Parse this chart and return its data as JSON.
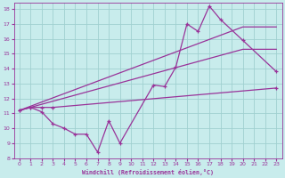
{
  "xlabel": "Windchill (Refroidissement éolien,°C)",
  "bg_color": "#c8ecec",
  "grid_color": "#a0d0d0",
  "line_color": "#993399",
  "spine_color": "#993399",
  "xlim": [
    -0.5,
    23.5
  ],
  "ylim": [
    8,
    18.4
  ],
  "xticks": [
    0,
    1,
    2,
    3,
    4,
    5,
    6,
    7,
    8,
    9,
    10,
    11,
    12,
    13,
    14,
    15,
    16,
    17,
    18,
    19,
    20,
    21,
    22,
    23
  ],
  "yticks": [
    8,
    9,
    10,
    11,
    12,
    13,
    14,
    15,
    16,
    17,
    18
  ],
  "series": [
    {
      "x": [
        0,
        1,
        2,
        3,
        4,
        5,
        6,
        7,
        8,
        9,
        12,
        13,
        14,
        15,
        16,
        17,
        18,
        20,
        23
      ],
      "y": [
        11.2,
        11.4,
        11.1,
        10.3,
        10.0,
        9.6,
        9.6,
        8.4,
        10.5,
        9.0,
        12.9,
        12.8,
        14.1,
        17.0,
        16.5,
        18.2,
        17.3,
        15.9,
        13.8
      ],
      "markers": true
    },
    {
      "x": [
        0,
        1,
        2,
        3,
        23
      ],
      "y": [
        11.2,
        11.4,
        11.4,
        11.4,
        12.7
      ],
      "markers": true
    },
    {
      "x": [
        0,
        20,
        23
      ],
      "y": [
        11.2,
        16.8,
        16.8
      ],
      "markers": false
    },
    {
      "x": [
        0,
        20,
        23
      ],
      "y": [
        11.2,
        15.3,
        15.3
      ],
      "markers": false
    }
  ]
}
